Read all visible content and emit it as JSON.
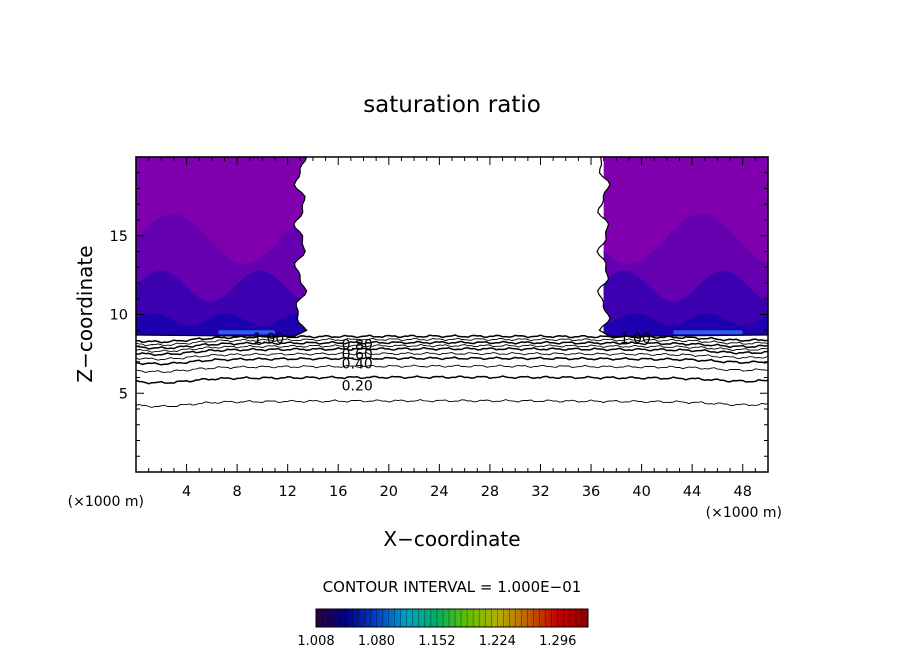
{
  "chart_data": {
    "type": "contour",
    "title": "saturation ratio",
    "xlabel": "X−coordinate",
    "ylabel": "Z−coordinate",
    "x_unit": "(×1000 m)",
    "z_unit": "(×1000 m)",
    "xlim": [
      0,
      50
    ],
    "zlim": [
      0,
      20
    ],
    "x_ticks": [
      4,
      8,
      12,
      16,
      20,
      24,
      28,
      32,
      36,
      40,
      44,
      48
    ],
    "x_tick_labels": [
      "4",
      "8",
      "12",
      "16",
      "20",
      "24",
      "28",
      "32",
      "36",
      "40",
      "44",
      "48"
    ],
    "z_ticks": [
      5,
      10,
      15
    ],
    "z_tick_labels": [
      "5",
      "10",
      "15"
    ],
    "contour_interval_text": "CONTOUR INTERVAL = 1.000E−01",
    "contour_levels": [
      0.1,
      0.2,
      0.3,
      0.4,
      0.5,
      0.6,
      0.7,
      0.8,
      0.9,
      1.0
    ],
    "contour_labels": [
      {
        "text": "1.00",
        "x": 10.5,
        "z": 8.5
      },
      {
        "text": "1.00",
        "x": 39.5,
        "z": 8.5
      },
      {
        "text": "0.80",
        "x": 17.5,
        "z": 8.1
      },
      {
        "text": "0.60",
        "x": 17.5,
        "z": 7.5
      },
      {
        "text": "0.40",
        "x": 17.5,
        "z": 6.9
      },
      {
        "text": "0.20",
        "x": 17.5,
        "z": 5.5
      }
    ],
    "contour_line_heights_km": [
      {
        "level": 0.1,
        "z": 4.4
      },
      {
        "level": 0.2,
        "z": 5.9
      },
      {
        "level": 0.3,
        "z": 6.6
      },
      {
        "level": 0.4,
        "z": 7.1
      },
      {
        "level": 0.5,
        "z": 7.4
      },
      {
        "level": 0.6,
        "z": 7.7
      },
      {
        "level": 0.7,
        "z": 7.9
      },
      {
        "level": 0.8,
        "z": 8.1
      },
      {
        "level": 0.9,
        "z": 8.3
      },
      {
        "level": 1.0,
        "z": 8.5
      }
    ],
    "supersaturated_regions": [
      {
        "x_range": [
          0,
          13
        ],
        "z_range": [
          8.8,
          20
        ]
      },
      {
        "x_range": [
          37,
          50
        ],
        "z_range": [
          8.8,
          20
        ]
      }
    ],
    "colorbar": {
      "min": 1.008,
      "max": 1.332,
      "tick_values": [
        1.008,
        1.08,
        1.152,
        1.224,
        1.296
      ],
      "tick_labels": [
        "1.008",
        "1.080",
        "1.152",
        "1.224",
        "1.296"
      ],
      "colors": [
        "#300040",
        "#000088",
        "#0040c8",
        "#00a0c0",
        "#00b060",
        "#60c000",
        "#b0b000",
        "#c06000",
        "#c00000",
        "#900000"
      ]
    },
    "fill_colors": {
      "upper": "#8000b0",
      "mid": "#6400b0",
      "lower": "#3c00b0",
      "near_base": "#1e00b0",
      "base_highlight": "#2a60e8"
    }
  }
}
